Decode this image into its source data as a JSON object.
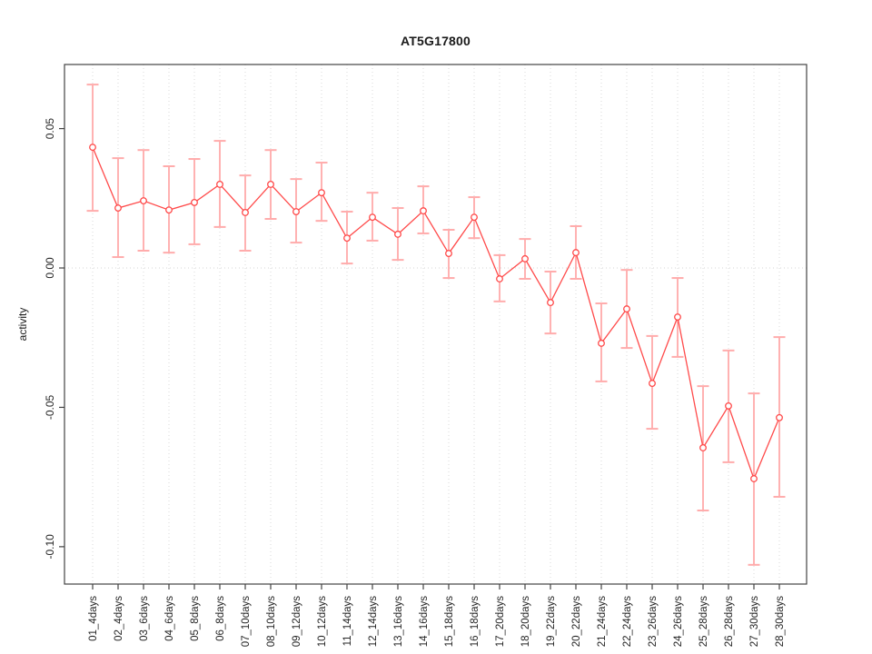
{
  "chart_data": {
    "type": "line",
    "title": "AT5G17800",
    "xlabel": "",
    "ylabel": "activity",
    "legend": "none",
    "marker": "open-circle",
    "grid": {
      "vertical": "dotted-per-category",
      "hline_at": 0
    },
    "ylim": [
      -0.1134,
      0.073
    ],
    "yticks": [
      0.05,
      0.0,
      -0.05,
      -0.1
    ],
    "ytick_labels": [
      "0.05",
      "0.00",
      "-0.05",
      "-0.10"
    ],
    "categories": [
      "01_4days",
      "02_4days",
      "03_6days",
      "04_6days",
      "05_8days",
      "06_8days",
      "07_10days",
      "08_10days",
      "09_12days",
      "10_12days",
      "11_14days",
      "12_14days",
      "13_16days",
      "14_16days",
      "15_18days",
      "16_18days",
      "17_20days",
      "18_20days",
      "19_22days",
      "20_22days",
      "21_24days",
      "22_24days",
      "23_26days",
      "24_26days",
      "25_28days",
      "26_28days",
      "27_30days",
      "28_30days"
    ],
    "series": [
      {
        "name": "activity",
        "values": [
          0.0433,
          0.0215,
          0.0241,
          0.0208,
          0.0235,
          0.03,
          0.0199,
          0.03,
          0.0202,
          0.027,
          0.0107,
          0.0182,
          0.0121,
          0.0205,
          0.0052,
          0.0182,
          -0.0039,
          0.0033,
          -0.0124,
          0.0055,
          -0.027,
          -0.0147,
          -0.0414,
          -0.0176,
          -0.0645,
          -0.0495,
          -0.0756,
          -0.0537
        ],
        "err_high": [
          0.0658,
          0.0394,
          0.0423,
          0.0365,
          0.0391,
          0.0456,
          0.0332,
          0.0423,
          0.0319,
          0.0378,
          0.0202,
          0.027,
          0.0215,
          0.0293,
          0.0137,
          0.0254,
          0.0046,
          0.0104,
          -0.0013,
          0.015,
          -0.0127,
          -0.0007,
          -0.0244,
          -0.0036,
          -0.0424,
          -0.0296,
          -0.045,
          -0.0248
        ],
        "err_low": [
          0.0205,
          0.0039,
          0.0062,
          0.0055,
          0.0085,
          0.0147,
          0.0062,
          0.0176,
          0.0091,
          0.0169,
          0.0016,
          0.0098,
          0.0029,
          0.0124,
          -0.0036,
          0.0107,
          -0.012,
          -0.0039,
          -0.0235,
          -0.0039,
          -0.0407,
          -0.0287,
          -0.0577,
          -0.0319,
          -0.087,
          -0.0697,
          -0.1065,
          -0.0821
        ]
      }
    ],
    "colors": {
      "point": "#ff4a4a",
      "line": "#ff4a4a",
      "error_bar": "#ff9191",
      "error_cap": "#ffacac",
      "gridline": "#dadada",
      "zero_line": "#d6d6d6",
      "frame": "#424242",
      "text": "#262626"
    }
  }
}
